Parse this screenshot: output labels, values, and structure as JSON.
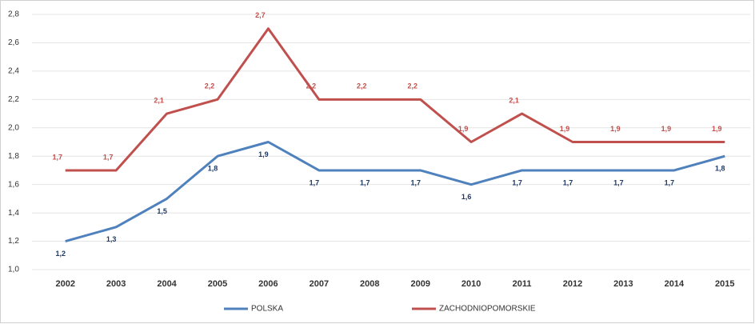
{
  "chart_data": {
    "type": "line",
    "categories": [
      "2002",
      "2003",
      "2004",
      "2005",
      "2006",
      "2007",
      "2008",
      "2009",
      "2010",
      "2011",
      "2012",
      "2013",
      "2014",
      "2015"
    ],
    "series": [
      {
        "name": "POLSKA",
        "color": "#4f81bd",
        "label_color": "#1f3864",
        "values": [
          1.2,
          1.3,
          1.5,
          1.8,
          1.9,
          1.7,
          1.7,
          1.7,
          1.6,
          1.7,
          1.7,
          1.7,
          1.7,
          1.8
        ],
        "value_labels": [
          "1,2",
          "1,3",
          "1,5",
          "1,8",
          "1,9",
          "1,7",
          "1,7",
          "1,7",
          "1,6",
          "1,7",
          "1,7",
          "1,7",
          "1,7",
          "1,8"
        ]
      },
      {
        "name": "ZACHODNIOPOMORSKIE",
        "color": "#c0504d",
        "label_color": "#c0504d",
        "values": [
          1.7,
          1.7,
          2.1,
          2.2,
          2.7,
          2.2,
          2.2,
          2.2,
          1.9,
          2.1,
          1.9,
          1.9,
          1.9,
          1.9
        ],
        "value_labels": [
          "1,7",
          "1,7",
          "2,1",
          "2,2",
          "2,7",
          "2,2",
          "2,2",
          "2,2",
          "1,9",
          "2,1",
          "1,9",
          "1,9",
          "1,9",
          "1,9"
        ]
      }
    ],
    "ylim": [
      1.0,
      2.8
    ],
    "yticks": [
      {
        "value": 1.0,
        "label": "1,0"
      },
      {
        "value": 1.2,
        "label": "1,2"
      },
      {
        "value": 1.4,
        "label": "1,4"
      },
      {
        "value": 1.6,
        "label": "1,6"
      },
      {
        "value": 1.8,
        "label": "1,8"
      },
      {
        "value": 2.0,
        "label": "2,0"
      },
      {
        "value": 2.2,
        "label": "2,2"
      },
      {
        "value": 2.4,
        "label": "2,4"
      },
      {
        "value": 2.6,
        "label": "2,6"
      },
      {
        "value": 2.8,
        "label": "2,8"
      }
    ],
    "grid": true
  }
}
